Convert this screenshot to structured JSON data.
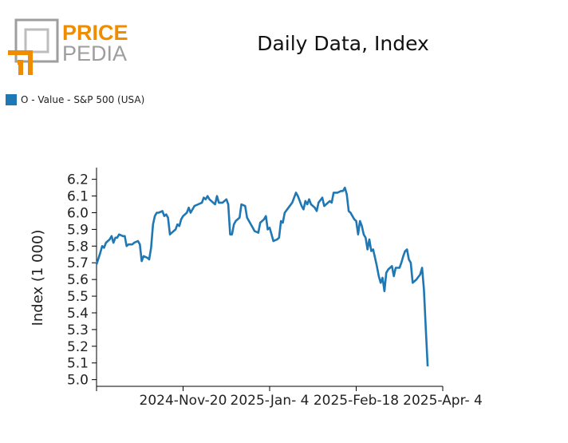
{
  "brand": {
    "line1": "PRICE",
    "line2": "PEDIA"
  },
  "title": "Daily Data, Index",
  "legend": {
    "label": "O - Value - S&P 500 (USA)",
    "color": "#1f77b4"
  },
  "chart_data": {
    "type": "line",
    "title": "Daily Data, Index",
    "ylabel": "Index (1 000)",
    "xlabel": "",
    "ylim": [
      4.96,
      6.27
    ],
    "yticks": [
      5.0,
      5.1,
      5.2,
      5.3,
      5.4,
      5.5,
      5.6,
      5.7,
      5.8,
      5.9,
      6.0,
      6.1,
      6.2
    ],
    "ytick_labels": [
      "5.0",
      "5.1",
      "5.2",
      "5.3",
      "5.4",
      "5.5",
      "5.6",
      "5.7",
      "5.8",
      "5.9",
      "6.0",
      "6.1",
      "6.2"
    ],
    "xticks": [
      {
        "index": 0,
        "label": ""
      },
      {
        "index": 46,
        "label": "2024-Nov-20"
      },
      {
        "index": 92,
        "label": "2025-Jan- 4"
      },
      {
        "index": 138,
        "label": "2025-Feb-18"
      },
      {
        "index": 184,
        "label": "2025-Apr- 4"
      }
    ],
    "x_range": [
      0,
      184
    ],
    "series": [
      {
        "name": "O - Value - S&P 500 (USA)",
        "color": "#1f77b4",
        "points": [
          [
            0,
            5.69
          ],
          [
            2,
            5.76
          ],
          [
            3,
            5.8
          ],
          [
            4,
            5.79
          ],
          [
            5,
            5.82
          ],
          [
            7,
            5.84
          ],
          [
            8,
            5.86
          ],
          [
            9,
            5.82
          ],
          [
            10,
            5.85
          ],
          [
            11,
            5.85
          ],
          [
            12,
            5.87
          ],
          [
            14,
            5.86
          ],
          [
            15,
            5.86
          ],
          [
            16,
            5.8
          ],
          [
            17,
            5.81
          ],
          [
            19,
            5.81
          ],
          [
            20,
            5.82
          ],
          [
            22,
            5.83
          ],
          [
            23,
            5.81
          ],
          [
            24,
            5.71
          ],
          [
            25,
            5.74
          ],
          [
            27,
            5.73
          ],
          [
            28,
            5.72
          ],
          [
            29,
            5.79
          ],
          [
            30,
            5.93
          ],
          [
            31,
            5.98
          ],
          [
            32,
            6.0
          ],
          [
            33,
            6.0
          ],
          [
            35,
            6.01
          ],
          [
            36,
            5.98
          ],
          [
            37,
            5.99
          ],
          [
            38,
            5.97
          ],
          [
            39,
            5.87
          ],
          [
            40,
            5.88
          ],
          [
            42,
            5.9
          ],
          [
            43,
            5.93
          ],
          [
            44,
            5.92
          ],
          [
            45,
            5.96
          ],
          [
            46,
            5.98
          ],
          [
            48,
            6.0
          ],
          [
            49,
            6.03
          ],
          [
            50,
            6.0
          ],
          [
            52,
            6.04
          ],
          [
            54,
            6.05
          ],
          [
            56,
            6.06
          ],
          [
            57,
            6.09
          ],
          [
            58,
            6.08
          ],
          [
            59,
            6.1
          ],
          [
            60,
            6.08
          ],
          [
            62,
            6.06
          ],
          [
            63,
            6.05
          ],
          [
            64,
            6.1
          ],
          [
            65,
            6.06
          ],
          [
            67,
            6.06
          ],
          [
            69,
            6.08
          ],
          [
            70,
            6.05
          ],
          [
            71,
            5.87
          ],
          [
            72,
            5.87
          ],
          [
            73,
            5.93
          ],
          [
            74,
            5.95
          ],
          [
            76,
            5.97
          ],
          [
            77,
            6.05
          ],
          [
            79,
            6.04
          ],
          [
            80,
            5.97
          ],
          [
            81,
            5.95
          ],
          [
            83,
            5.91
          ],
          [
            84,
            5.89
          ],
          [
            86,
            5.88
          ],
          [
            87,
            5.94
          ],
          [
            89,
            5.96
          ],
          [
            90,
            5.98
          ],
          [
            91,
            5.9
          ],
          [
            92,
            5.91
          ],
          [
            93,
            5.87
          ],
          [
            94,
            5.83
          ],
          [
            96,
            5.84
          ],
          [
            97,
            5.85
          ],
          [
            98,
            5.95
          ],
          [
            99,
            5.94
          ],
          [
            100,
            6.0
          ],
          [
            102,
            6.03
          ],
          [
            104,
            6.06
          ],
          [
            106,
            6.12
          ],
          [
            107,
            6.1
          ],
          [
            109,
            6.04
          ],
          [
            110,
            6.02
          ],
          [
            111,
            6.07
          ],
          [
            112,
            6.05
          ],
          [
            113,
            6.08
          ],
          [
            114,
            6.05
          ],
          [
            116,
            6.03
          ],
          [
            117,
            6.01
          ],
          [
            118,
            6.06
          ],
          [
            120,
            6.09
          ],
          [
            121,
            6.04
          ],
          [
            122,
            6.05
          ],
          [
            124,
            6.07
          ],
          [
            125,
            6.06
          ],
          [
            126,
            6.12
          ],
          [
            128,
            6.12
          ],
          [
            130,
            6.13
          ],
          [
            131,
            6.13
          ],
          [
            132,
            6.15
          ],
          [
            133,
            6.11
          ],
          [
            134,
            6.01
          ],
          [
            135,
            6.0
          ],
          [
            136,
            5.98
          ],
          [
            137,
            5.96
          ],
          [
            138,
            5.95
          ],
          [
            139,
            5.87
          ],
          [
            140,
            5.95
          ],
          [
            141,
            5.92
          ],
          [
            142,
            5.87
          ],
          [
            143,
            5.85
          ],
          [
            144,
            5.78
          ],
          [
            145,
            5.84
          ],
          [
            146,
            5.77
          ],
          [
            147,
            5.78
          ],
          [
            148,
            5.73
          ],
          [
            149,
            5.68
          ],
          [
            150,
            5.62
          ],
          [
            151,
            5.58
          ],
          [
            152,
            5.61
          ],
          [
            153,
            5.53
          ],
          [
            154,
            5.64
          ],
          [
            155,
            5.66
          ],
          [
            157,
            5.68
          ],
          [
            158,
            5.62
          ],
          [
            159,
            5.67
          ],
          [
            161,
            5.67
          ],
          [
            162,
            5.7
          ],
          [
            163,
            5.74
          ],
          [
            164,
            5.77
          ],
          [
            165,
            5.78
          ],
          [
            166,
            5.72
          ],
          [
            167,
            5.7
          ],
          [
            168,
            5.58
          ],
          [
            170,
            5.6
          ],
          [
            172,
            5.63
          ],
          [
            173,
            5.67
          ],
          [
            174,
            5.54
          ],
          [
            175,
            5.3
          ],
          [
            176,
            5.08
          ]
        ]
      }
    ]
  }
}
